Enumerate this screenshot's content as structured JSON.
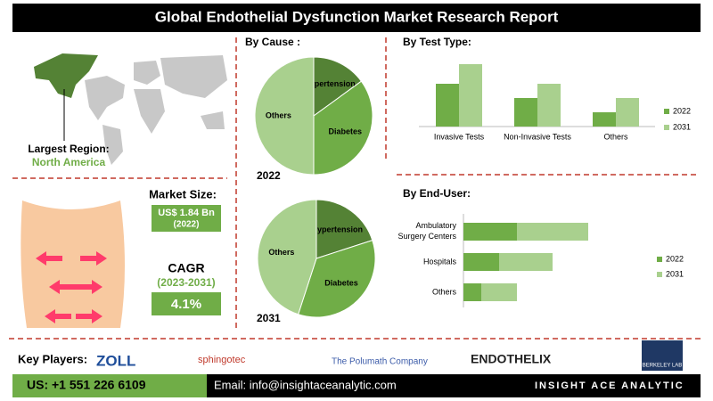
{
  "header": {
    "title": "Global Endothelial Dysfunction Market Research Report"
  },
  "region": {
    "label": "Largest Region:",
    "value": "North America"
  },
  "market": {
    "label": "Market Size:",
    "value": "US$ 1.84 Bn",
    "year": "(2022)"
  },
  "cagr": {
    "label": "CAGR",
    "period": "(2023-2031)",
    "value": "4.1%"
  },
  "players": {
    "label": "Key Players:",
    "names": [
      "ZOLL",
      "sphingotec",
      "The Polumath Company",
      "ENDOTHELIX",
      "BERKELEY LAB"
    ]
  },
  "footer": {
    "phone": "US: +1 551 226 6109",
    "email": "Email: info@insightaceanalytic.com",
    "brand": "INSIGHT ACE ANALYTIC"
  },
  "sections": {
    "cause": "By  Cause :",
    "test": "By Test Type:",
    "enduser": "By End-User:"
  },
  "chart_data": [
    {
      "type": "pie",
      "title": "2022",
      "categories": [
        "Hypertension",
        "Diabetes",
        "Others"
      ],
      "values": [
        15,
        35,
        50
      ],
      "colors": [
        "#548235",
        "#70ad47",
        "#a9d08e"
      ]
    },
    {
      "type": "pie",
      "title": "2031",
      "categories": [
        "Hypertension",
        "Diabetes",
        "Others"
      ],
      "values": [
        20,
        35,
        45
      ],
      "colors": [
        "#548235",
        "#70ad47",
        "#a9d08e"
      ]
    },
    {
      "type": "bar",
      "categories": [
        "Invasive Tests",
        "Non-Invasive Tests",
        "Others"
      ],
      "series": [
        {
          "name": "2022",
          "color": "#70ad47",
          "values": [
            48,
            32,
            16
          ]
        },
        {
          "name": "2031",
          "color": "#a9d08e",
          "values": [
            70,
            48,
            32
          ]
        }
      ]
    },
    {
      "type": "hbar-stacked",
      "categories": [
        "Ambulatory Surgery Centers",
        "Hospitals",
        "Others"
      ],
      "series": [
        {
          "name": "2022",
          "color": "#70ad47",
          "values": [
            60,
            40,
            20
          ]
        },
        {
          "name": "2031",
          "color": "#a9d08e",
          "values": [
            80,
            60,
            40
          ]
        }
      ]
    }
  ]
}
